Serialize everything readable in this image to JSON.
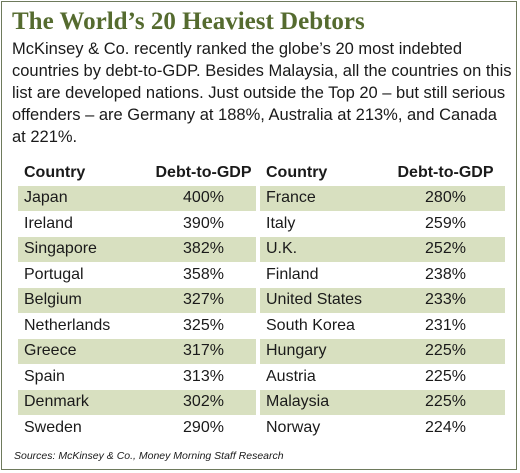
{
  "title": "The World’s 20 Heaviest Debtors",
  "intro": "McKinsey & Co. recently ranked the globe’s 20 most indebted countries by debt-to-GDP. Besides Malaysia, all the countries on this list are developed nations. Just outside the Top 20 – but still serious offenders – are Germany at 188%, Australia at 213%, and Canada at 221%.",
  "source": "Sources: McKinsey & Co., Money Morning Staff Research",
  "chart_data": {
    "type": "table",
    "title": "The World’s 20 Heaviest Debtors",
    "columns": [
      "Country",
      "Debt-to-GDP"
    ],
    "left_table": [
      {
        "country": "Japan",
        "debt": "400%"
      },
      {
        "country": "Ireland",
        "debt": "390%"
      },
      {
        "country": "Singapore",
        "debt": "382%"
      },
      {
        "country": "Portugal",
        "debt": "358%"
      },
      {
        "country": "Belgium",
        "debt": "327%"
      },
      {
        "country": "Netherlands",
        "debt": "325%"
      },
      {
        "country": "Greece",
        "debt": "317%"
      },
      {
        "country": "Spain",
        "debt": "313%"
      },
      {
        "country": "Denmark",
        "debt": "302%"
      },
      {
        "country": "Sweden",
        "debt": "290%"
      }
    ],
    "right_table": [
      {
        "country": "France",
        "debt": "280%"
      },
      {
        "country": "Italy",
        "debt": "259%"
      },
      {
        "country": "U.K.",
        "debt": "252%"
      },
      {
        "country": "Finland",
        "debt": "238%"
      },
      {
        "country": "United States",
        "debt": "233%"
      },
      {
        "country": "South Korea",
        "debt": "231%"
      },
      {
        "country": "Hungary",
        "debt": "225%"
      },
      {
        "country": "Austria",
        "debt": "225%"
      },
      {
        "country": "Malaysia",
        "debt": "225%"
      },
      {
        "country": "Norway",
        "debt": "224%"
      }
    ]
  },
  "colors": {
    "title": "#556b2f",
    "row_shade": "#d8e0c0",
    "border": "#6e7a5c"
  }
}
